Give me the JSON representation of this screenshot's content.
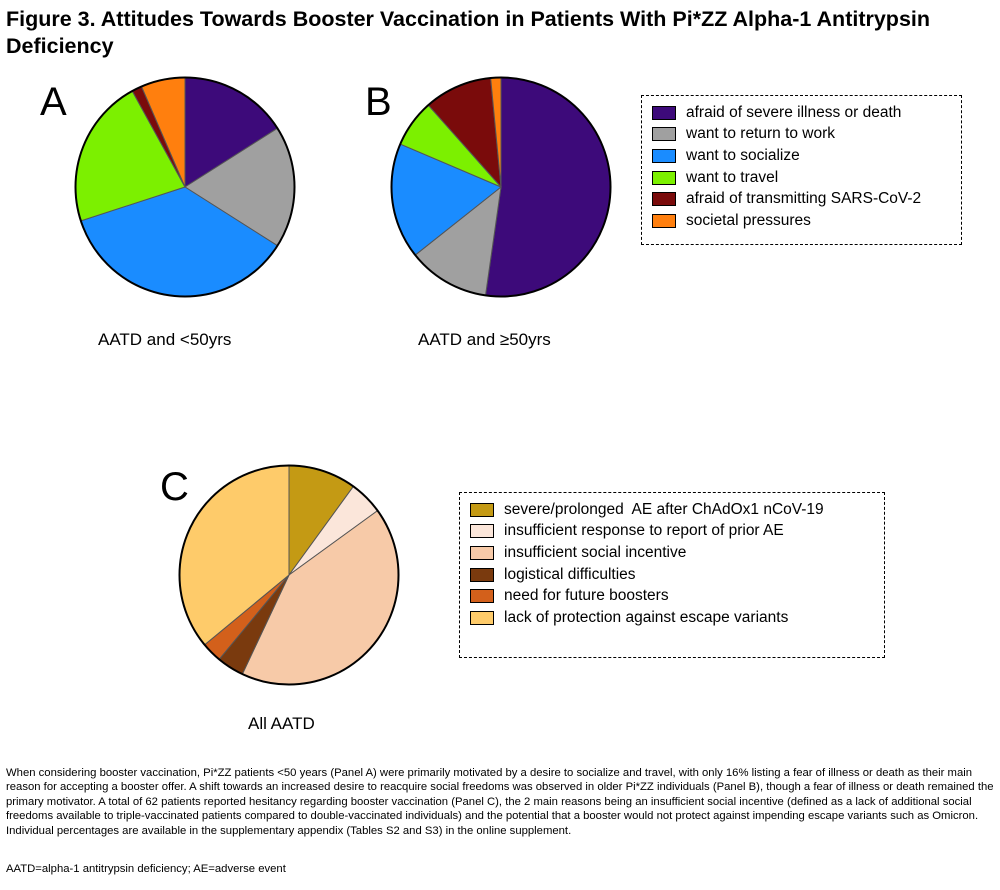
{
  "figure": {
    "title": "Figure 3. Attitudes Towards Booster Vaccination in Patients With Pi*ZZ Alpha-1 Antitrypsin Deficiency",
    "paragraph": "When considering booster vaccination, Pi*ZZ patients <50 years (Panel A) were primarily motivated by a desire to socialize and travel, with only 16% listing a fear of illness or death as their main reason for accepting a booster offer. A shift towards an increased desire to reacquire social freedoms was observed in older Pi*ZZ individuals (Panel B), though a fear of illness or death remained the primary motivator. A total of 62 patients reported hesitancy regarding booster vaccination (Panel C), the 2 main reasons being an insufficient social incentive (defined as a lack of additional social freedoms available to triple-vaccinated patients compared to double-vaccinated individuals) and the potential that a booster would not protect against impending escape variants such as Omicron. Individual percentages are available in the supplementary appendix (Tables S2 and S3) in the online supplement.",
    "abbreviations": "AATD=alpha-1 antitrypsin deficiency; AE=adverse event"
  },
  "legend_ab": {
    "items": [
      {
        "label": "afraid of severe illness or death",
        "color": "#3d0a7a"
      },
      {
        "label": "want to return to work",
        "color": "#a0a0a0"
      },
      {
        "label": "want to socialize",
        "color": "#1a8cff"
      },
      {
        "label": "want to travel",
        "color": "#7cf000"
      },
      {
        "label": "afraid of transmitting SARS-CoV-2",
        "color": "#7a0b0b"
      },
      {
        "label": "societal pressures",
        "color": "#ff7f0e"
      }
    ]
  },
  "legend_c": {
    "items": [
      {
        "label": "severe/prolonged  AE after ChAdOx1 nCoV-19",
        "color": "#c49a14"
      },
      {
        "label": "insufficient response to report of prior AE",
        "color": "#fbe6da"
      },
      {
        "label": "insufficient social incentive",
        "color": "#f7caa8"
      },
      {
        "label": "logistical difficulties",
        "color": "#7a3a0e"
      },
      {
        "label": "need for future boosters",
        "color": "#d3601b"
      },
      {
        "label": "lack of protection against escape variants",
        "color": "#fecb6a"
      }
    ]
  },
  "chart_data": [
    {
      "type": "pie",
      "panel": "A",
      "caption": "AATD and <50yrs",
      "categories": [
        "afraid of severe illness or death",
        "want to return to work",
        "want to socialize",
        "want to travel",
        "afraid of transmitting SARS-CoV-2",
        "societal pressures"
      ],
      "values": [
        16,
        18,
        36,
        22,
        1.5,
        6.5
      ],
      "colors": [
        "#3d0a7a",
        "#a0a0a0",
        "#1a8cff",
        "#7cf000",
        "#7a0b0b",
        "#ff7f0e"
      ]
    },
    {
      "type": "pie",
      "panel": "B",
      "caption": "AATD and ≥50yrs",
      "categories": [
        "afraid of severe illness or death",
        "want to return to work",
        "want to socialize",
        "want to travel",
        "afraid of transmitting SARS-CoV-2",
        "societal pressures"
      ],
      "values": [
        52,
        12,
        17,
        7,
        10,
        1.5
      ],
      "colors": [
        "#3d0a7a",
        "#a0a0a0",
        "#1a8cff",
        "#7cf000",
        "#7a0b0b",
        "#ff7f0e"
      ]
    },
    {
      "type": "pie",
      "panel": "C",
      "caption": "All AATD",
      "categories": [
        "severe/prolonged  AE after ChAdOx1 nCoV-19",
        "insufficient response to report of prior AE",
        "insufficient social incentive",
        "logistical difficulties",
        "need for future boosters",
        "lack of protection against escape variants"
      ],
      "values": [
        10,
        5,
        42,
        4,
        3,
        36
      ],
      "colors": [
        "#c49a14",
        "#fbe6da",
        "#f7caa8",
        "#7a3a0e",
        "#d3601b",
        "#fecb6a"
      ]
    }
  ]
}
